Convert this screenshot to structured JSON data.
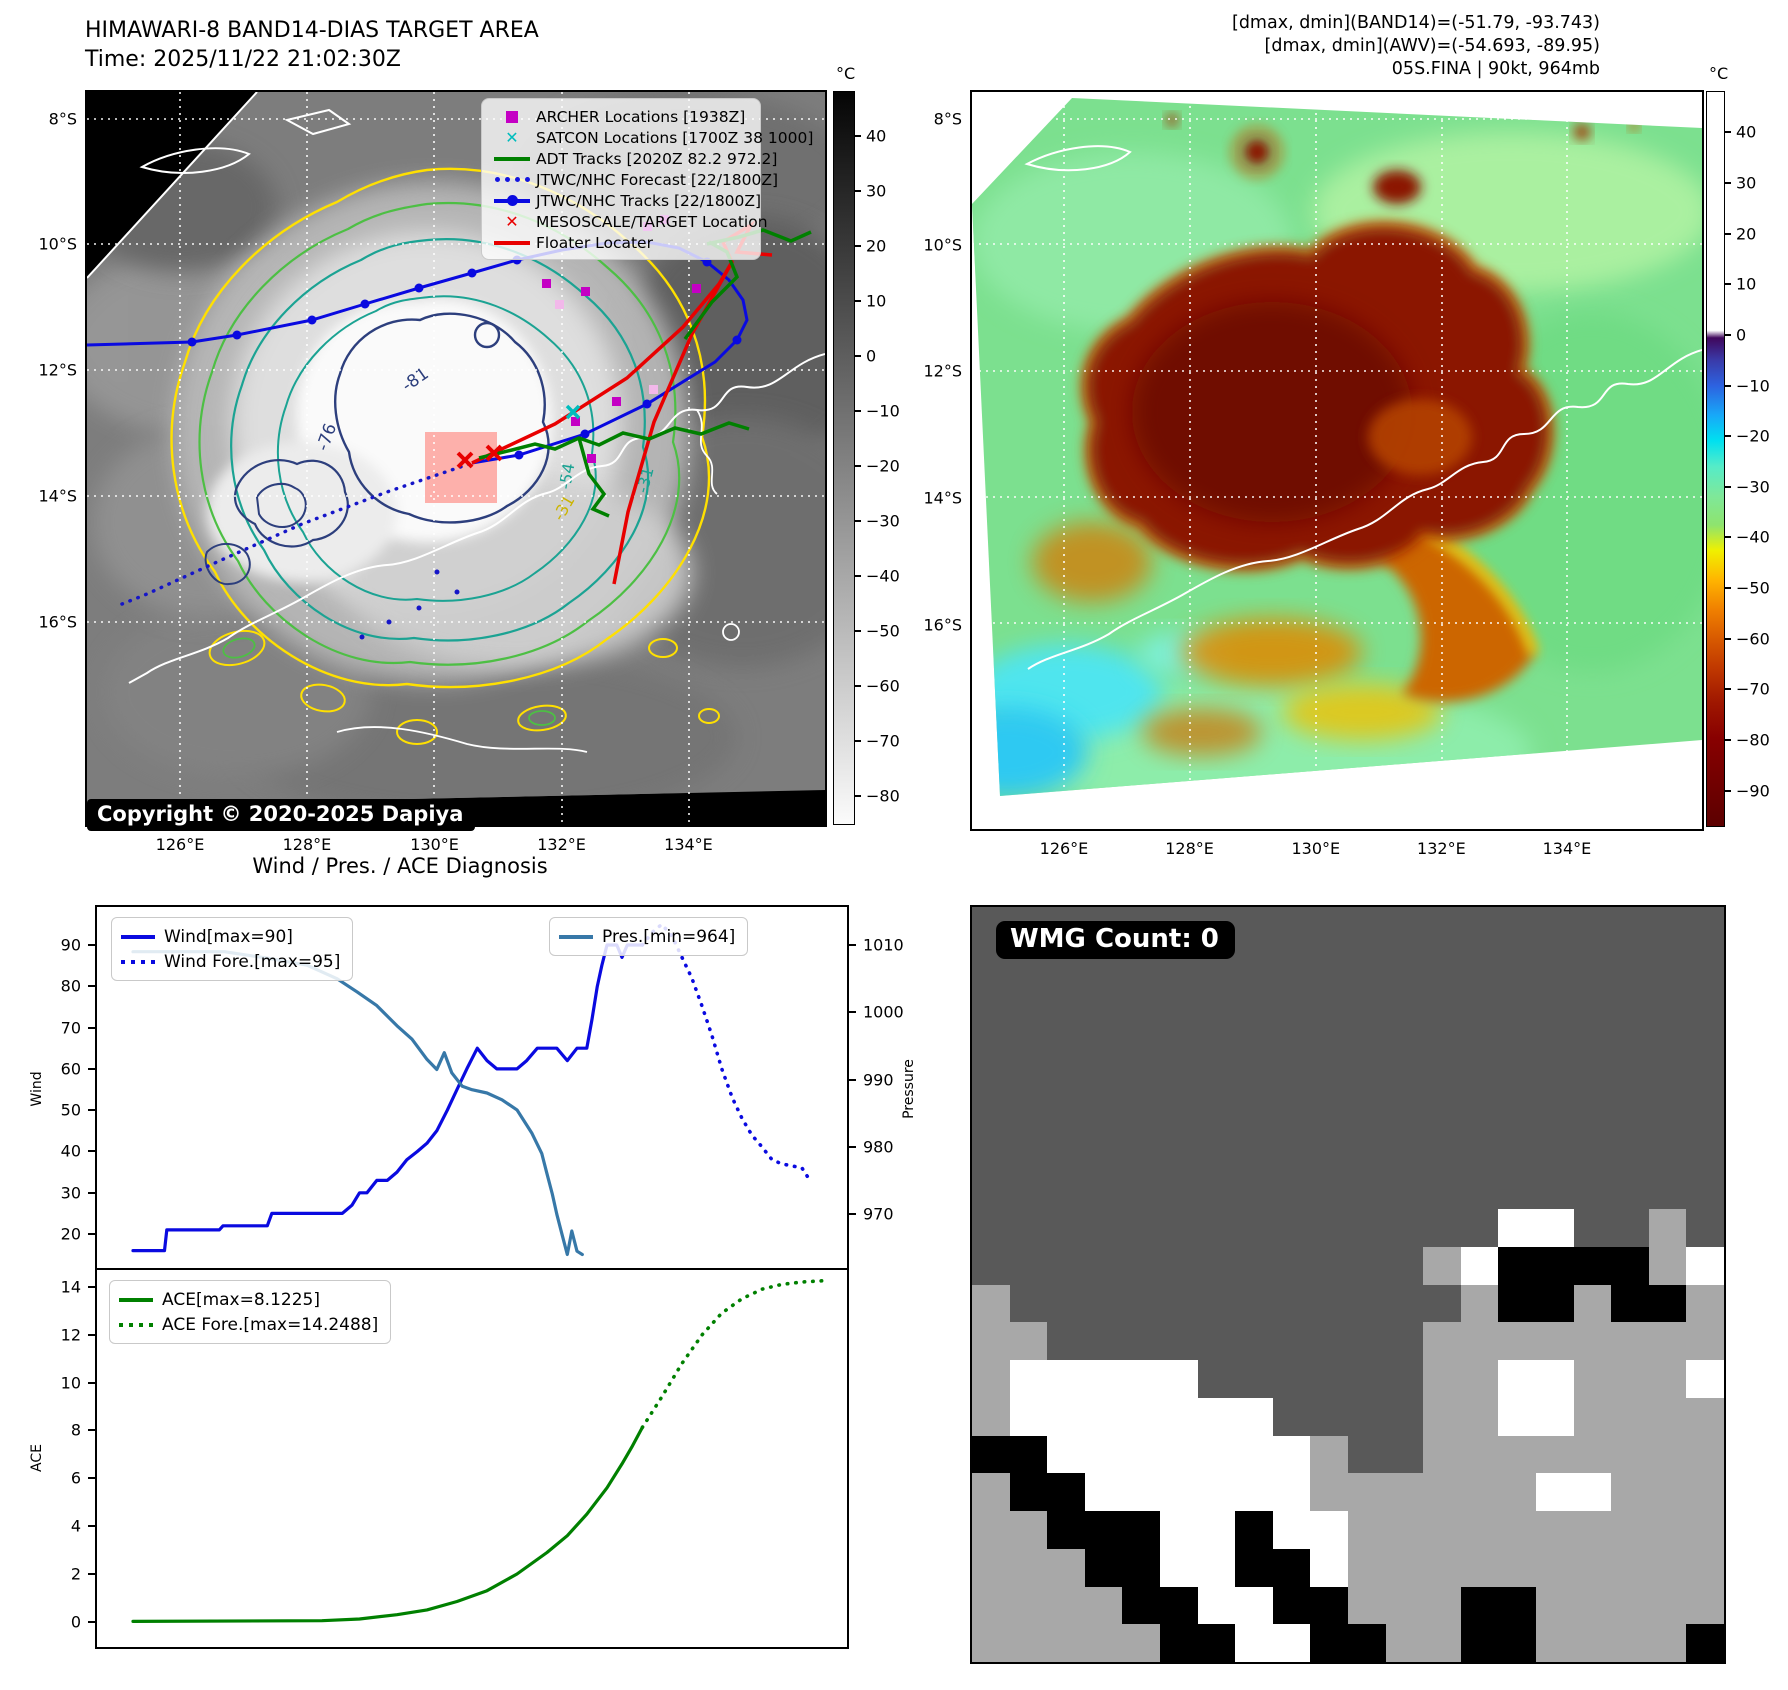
{
  "colors": {
    "track_blue": "#0a0ae0",
    "steel_blue": "#3778a8",
    "adt_green": "#008000",
    "floater_red": "#e80000",
    "archer_magenta": "#c400c4",
    "satcon_cyan": "#00bdbd",
    "contour_yellow": "#ffe000",
    "wmg_palette": {
      "d": "#595959",
      "g": "#a8a8a8",
      "w": "#ffffff",
      "b": "#000000"
    }
  },
  "top_left": {
    "title": "HIMAWARI-8 BAND14-DIAS TARGET AREA",
    "time_line": "Time: 2025/11/22 21:02:30Z",
    "copyright": "Copyright © 2020-2025 Dapiya",
    "legend": [
      {
        "marker": "square",
        "color": "#c400c4",
        "label": "ARCHER Locations [1938Z]"
      },
      {
        "marker": "x",
        "color": "#00bdbd",
        "label": "SATCON Locations [1700Z 38 1000]"
      },
      {
        "marker": "line",
        "color": "#008000",
        "label": "ADT Tracks [2020Z 82.2 972.2]"
      },
      {
        "marker": "dotted",
        "color": "#1515e0",
        "label": "JTWC/NHC Forecast [22/1800Z]"
      },
      {
        "marker": "line-dot",
        "color": "#0a0ae0",
        "label": "JTWC/NHC Tracks [22/1800Z]"
      },
      {
        "marker": "x",
        "color": "#e80000",
        "label": "MESOSCALE/TARGET Location"
      },
      {
        "marker": "line",
        "color": "#e80000",
        "label": "Floater Locater"
      }
    ],
    "contour_labels": [
      "-81",
      "-76",
      "-54",
      "-31",
      "-31"
    ],
    "colorbar": {
      "unit": "°C",
      "range": [
        48,
        -85
      ],
      "ticks": [
        40,
        30,
        20,
        10,
        0,
        -10,
        -20,
        -30,
        -40,
        -50,
        -60,
        -70,
        -80
      ]
    }
  },
  "top_right": {
    "info_lines": [
      "[dmax, dmin](BAND14)=(-51.79, -93.743)",
      "[dmax, dmin](AWV)=(-54.693, -89.95)",
      "05S.FINA | 90kt, 964mb"
    ],
    "colorbar": {
      "unit": "°C",
      "range": [
        48,
        -97
      ],
      "ticks": [
        40,
        30,
        20,
        10,
        0,
        -10,
        -20,
        -30,
        -40,
        -50,
        -60,
        -70,
        -80,
        -90
      ]
    }
  },
  "maps": {
    "lat_labels": [
      "8°S",
      "10°S",
      "12°S",
      "14°S",
      "16°S"
    ],
    "lon_labels": [
      "126°E",
      "128°E",
      "130°E",
      "132°E",
      "134°E"
    ]
  },
  "bottom_right": {
    "wmg_label": "WMG Count: 0",
    "grid_rows": [
      "dddddddddddddddddddd",
      "dddddddddddddddddddd",
      "dddddddddddddddddddd",
      "dddddddddddddddddddd",
      "dddddddddddddddddddd",
      "dddddddddddddddddddd",
      "dddddddddddddddddddd",
      "dddddddddddddddddddd",
      "ddddddddddddddwwddgd",
      "ddddddddddddgwbbbbgw",
      "gddddddddddddgbbgbbg",
      "ggddddddddddgggggggg",
      "gwwwwwddddddggwwgggw",
      "gwwwwwwwddddggwwgggg",
      "bbwwwwwwwgddgggggggg",
      "gbbwwwwwwggggggwwggg",
      "ggbbbwwbwwgggggggggg",
      "gggbbwwbbwgggggggggg",
      "ggggbbwwbbgggbbggggg",
      "gggggbbwwbbggbbggggb"
    ]
  },
  "chart_data": [
    {
      "type": "line",
      "title": "Wind / Pres. / ACE Diagnosis",
      "ylabel": "Wind",
      "y2label": "Pressure",
      "ylim": [
        11.3,
        99.2
      ],
      "y2lim": [
        961.7,
        1015.65
      ],
      "yticks": [
        20,
        30,
        40,
        50,
        60,
        70,
        80,
        90
      ],
      "y2ticks": [
        970,
        980,
        990,
        1000,
        1010
      ],
      "series": [
        {
          "name": "Wind[max=90]",
          "axis": "left",
          "style": "solid",
          "color": "#0a0ae0",
          "points": [
            [
              0.048,
              16
            ],
            [
              0.09,
              16
            ],
            [
              0.093,
              21
            ],
            [
              0.163,
              21
            ],
            [
              0.168,
              22
            ],
            [
              0.227,
              22
            ],
            [
              0.233,
              25
            ],
            [
              0.327,
              25
            ],
            [
              0.34,
              27
            ],
            [
              0.35,
              30
            ],
            [
              0.36,
              30
            ],
            [
              0.373,
              33
            ],
            [
              0.387,
              33
            ],
            [
              0.4,
              35
            ],
            [
              0.413,
              38
            ],
            [
              0.427,
              40
            ],
            [
              0.44,
              42
            ],
            [
              0.453,
              45
            ],
            [
              0.467,
              50
            ],
            [
              0.48,
              55
            ],
            [
              0.493,
              60
            ],
            [
              0.507,
              65
            ],
            [
              0.52,
              62
            ],
            [
              0.533,
              60
            ],
            [
              0.56,
              60
            ],
            [
              0.573,
              62
            ],
            [
              0.587,
              65
            ],
            [
              0.613,
              65
            ],
            [
              0.627,
              62
            ],
            [
              0.64,
              65
            ],
            [
              0.653,
              65
            ],
            [
              0.66,
              72
            ],
            [
              0.667,
              80
            ],
            [
              0.673,
              85
            ],
            [
              0.68,
              90
            ],
            [
              0.693,
              90
            ],
            [
              0.7,
              87
            ],
            [
              0.707,
              90
            ],
            [
              0.727,
              90
            ]
          ]
        },
        {
          "name": "Wind Fore.[max=95]",
          "axis": "left",
          "style": "dotted",
          "color": "#0a0ae0",
          "points": [
            [
              0.727,
              90
            ],
            [
              0.74,
              93
            ],
            [
              0.753,
              95
            ],
            [
              0.767,
              92
            ],
            [
              0.78,
              87
            ],
            [
              0.793,
              82
            ],
            [
              0.807,
              75
            ],
            [
              0.82,
              68
            ],
            [
              0.833,
              60
            ],
            [
              0.847,
              53
            ],
            [
              0.86,
              48
            ],
            [
              0.873,
              44
            ],
            [
              0.887,
              41
            ],
            [
              0.9,
              38
            ],
            [
              0.913,
              37
            ],
            [
              0.927,
              36.5
            ],
            [
              0.94,
              36
            ],
            [
              0.947,
              34
            ],
            [
              0.953,
              33
            ]
          ]
        },
        {
          "name": "Pres.[min=964]",
          "axis": "right",
          "style": "solid",
          "color": "#3778a8",
          "points": [
            [
              0.048,
              1009
            ],
            [
              0.17,
              1009
            ],
            [
              0.23,
              1008
            ],
            [
              0.28,
              1007
            ],
            [
              0.32,
              1005
            ],
            [
              0.347,
              1003
            ],
            [
              0.373,
              1001
            ],
            [
              0.4,
              998
            ],
            [
              0.42,
              996
            ],
            [
              0.44,
              993
            ],
            [
              0.453,
              991.5
            ],
            [
              0.463,
              994
            ],
            [
              0.473,
              991
            ],
            [
              0.487,
              989
            ],
            [
              0.5,
              988.5
            ],
            [
              0.52,
              988
            ],
            [
              0.54,
              987
            ],
            [
              0.56,
              985.5
            ],
            [
              0.58,
              982
            ],
            [
              0.593,
              979
            ],
            [
              0.6,
              976
            ],
            [
              0.607,
              973
            ],
            [
              0.613,
              970
            ],
            [
              0.62,
              967
            ],
            [
              0.627,
              964
            ],
            [
              0.633,
              967.5
            ],
            [
              0.64,
              964.5
            ],
            [
              0.647,
              964
            ]
          ]
        }
      ]
    },
    {
      "type": "line",
      "ylabel": "ACE",
      "ylim": [
        -1.05,
        14.7
      ],
      "yticks": [
        0,
        2,
        4,
        6,
        8,
        10,
        12,
        14
      ],
      "series": [
        {
          "name": "ACE[max=8.1225]",
          "axis": "left",
          "style": "solid",
          "color": "#008000",
          "points": [
            [
              0.048,
              0.02
            ],
            [
              0.3,
              0.05
            ],
            [
              0.35,
              0.12
            ],
            [
              0.4,
              0.3
            ],
            [
              0.44,
              0.5
            ],
            [
              0.48,
              0.85
            ],
            [
              0.52,
              1.3
            ],
            [
              0.56,
              2.0
            ],
            [
              0.6,
              2.9
            ],
            [
              0.627,
              3.6
            ],
            [
              0.653,
              4.5
            ],
            [
              0.68,
              5.6
            ],
            [
              0.7,
              6.6
            ],
            [
              0.713,
              7.3
            ],
            [
              0.727,
              8.12
            ]
          ]
        },
        {
          "name": "ACE Fore.[max=14.2488]",
          "axis": "left",
          "style": "dotted",
          "color": "#008000",
          "points": [
            [
              0.727,
              8.12
            ],
            [
              0.753,
              9.4
            ],
            [
              0.78,
              10.8
            ],
            [
              0.807,
              12.0
            ],
            [
              0.833,
              12.9
            ],
            [
              0.86,
              13.5
            ],
            [
              0.887,
              13.9
            ],
            [
              0.913,
              14.1
            ],
            [
              0.94,
              14.2
            ],
            [
              0.967,
              14.25
            ]
          ]
        }
      ]
    }
  ]
}
